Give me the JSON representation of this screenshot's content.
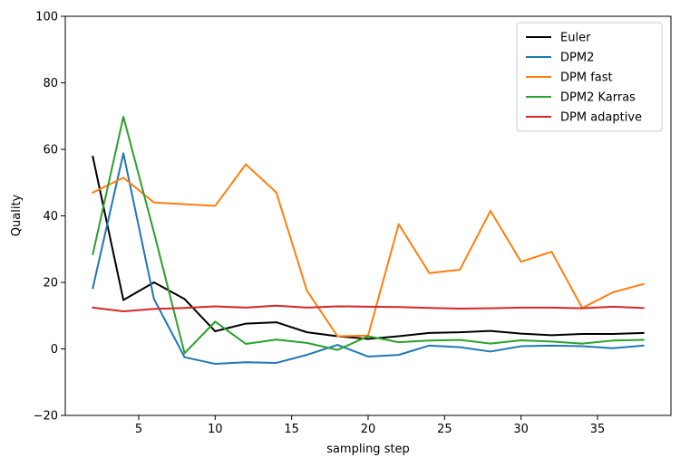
{
  "chart_data": {
    "type": "line",
    "title": "",
    "xlabel": "sampling step",
    "ylabel": "Quality",
    "xlim": [
      0.2,
      39.8
    ],
    "ylim": [
      -20,
      100
    ],
    "xticks": [
      5,
      10,
      15,
      20,
      25,
      30,
      35
    ],
    "yticks": [
      -20,
      0,
      20,
      40,
      60,
      80,
      100
    ],
    "grid": false,
    "legend_position": "top-right",
    "x": [
      2,
      4,
      6,
      8,
      10,
      12,
      14,
      16,
      18,
      20,
      22,
      24,
      26,
      28,
      30,
      32,
      34,
      36,
      38
    ],
    "series": [
      {
        "name": "Euler",
        "color": "#000000",
        "values": [
          57.8,
          14.7,
          20.0,
          15.0,
          5.3,
          7.6,
          8.0,
          5.0,
          3.8,
          3.0,
          3.8,
          4.8,
          5.0,
          5.4,
          4.6,
          4.1,
          4.5,
          4.5,
          4.8
        ]
      },
      {
        "name": "DPM2",
        "color": "#1f77b4",
        "values": [
          18.3,
          58.8,
          15.0,
          -2.5,
          -4.5,
          -4.0,
          -4.2,
          -1.8,
          1.2,
          -2.3,
          -1.8,
          1.0,
          0.5,
          -0.8,
          0.8,
          1.0,
          0.8,
          0.2,
          1.0
        ]
      },
      {
        "name": "DPM fast",
        "color": "#ff7f0e",
        "values": [
          47.0,
          51.5,
          44.0,
          43.5,
          43.0,
          55.5,
          47.0,
          17.5,
          3.8,
          4.0,
          37.5,
          22.8,
          23.8,
          41.5,
          26.2,
          29.2,
          12.3,
          17.0,
          19.5
        ]
      },
      {
        "name": "DPM2 Karras",
        "color": "#2ca02c",
        "values": [
          28.5,
          69.8,
          35.0,
          -1.3,
          8.2,
          1.5,
          2.8,
          1.8,
          -0.3,
          3.8,
          2.0,
          2.5,
          2.7,
          1.6,
          2.6,
          2.2,
          1.6,
          2.5,
          2.7
        ]
      },
      {
        "name": "DPM adaptive",
        "color": "#d62728",
        "values": [
          12.4,
          11.3,
          12.0,
          12.3,
          12.8,
          12.4,
          13.0,
          12.4,
          12.8,
          12.7,
          12.6,
          12.3,
          12.1,
          12.2,
          12.4,
          12.4,
          12.2,
          12.7,
          12.3
        ]
      }
    ]
  }
}
